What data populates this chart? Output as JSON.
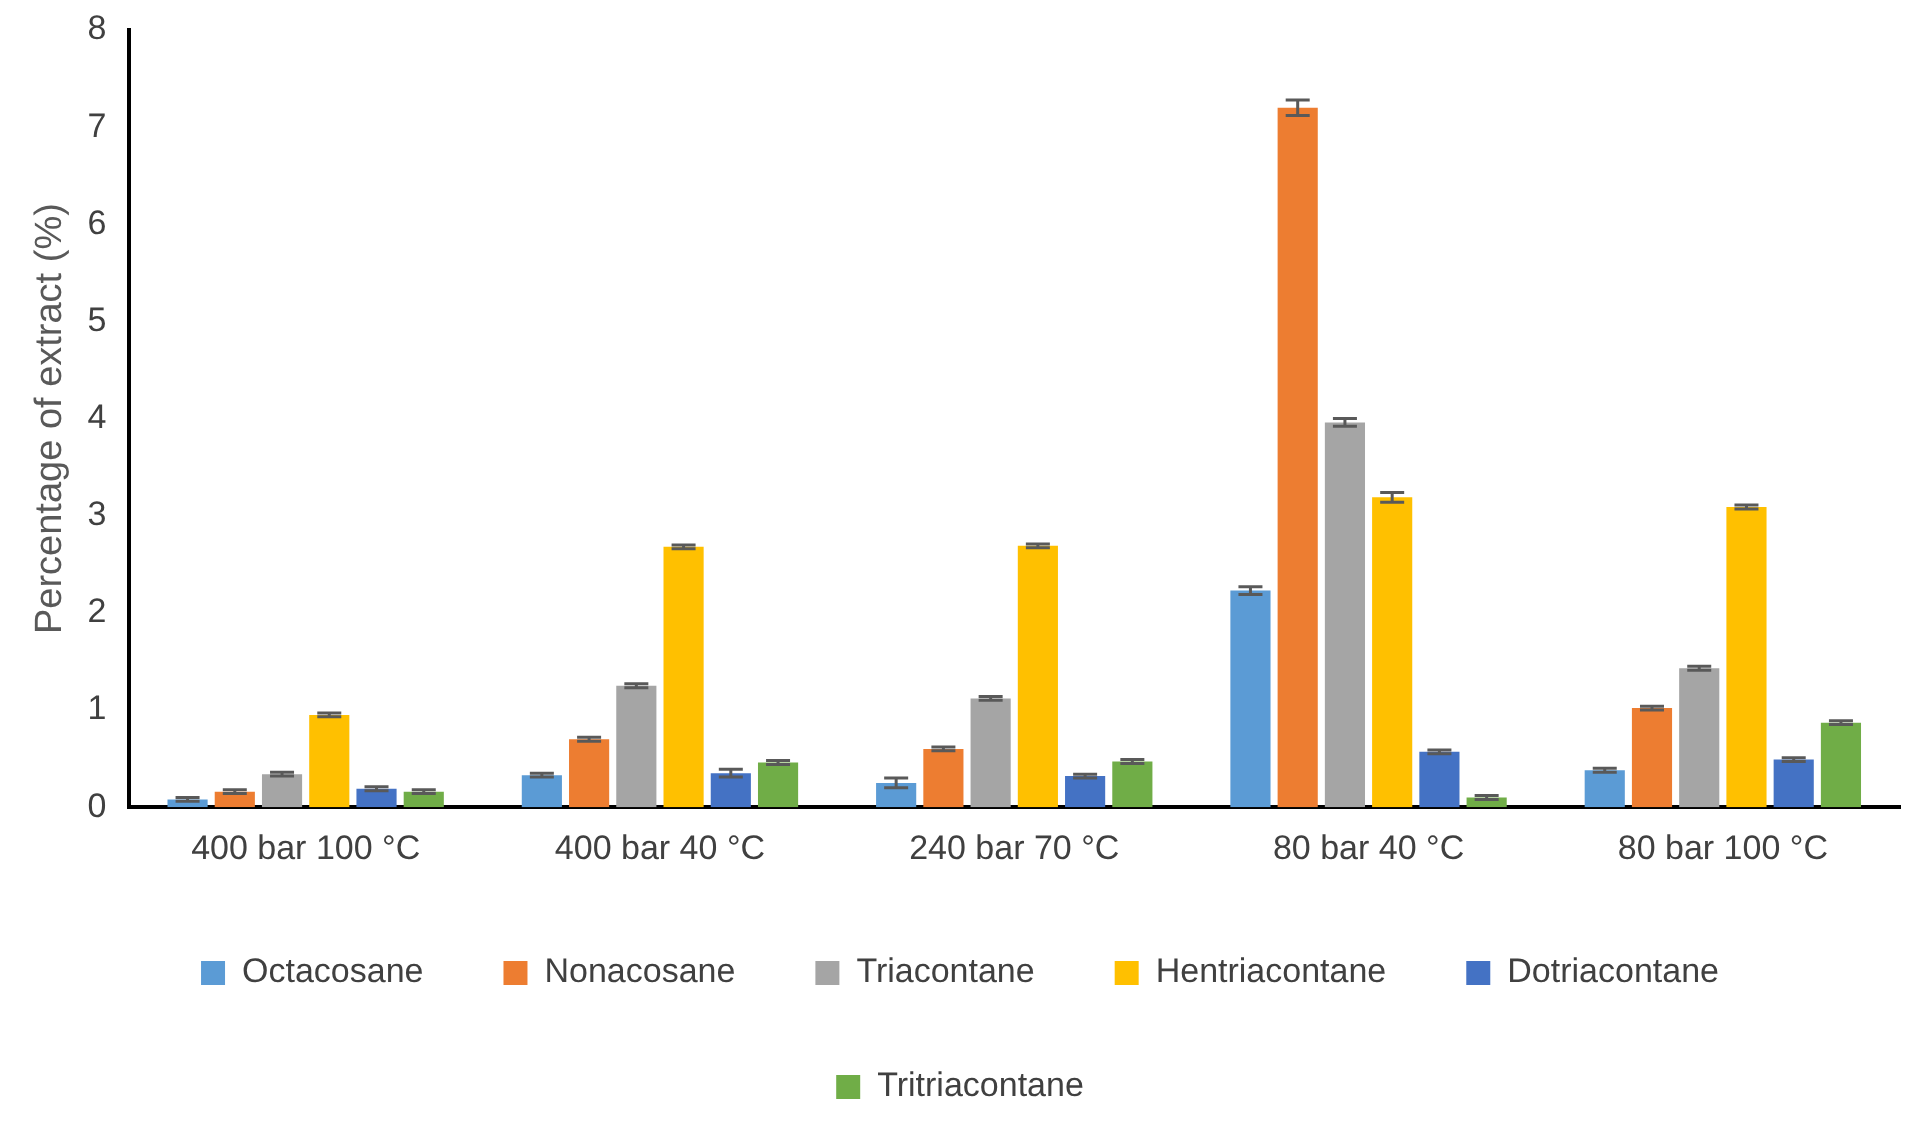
{
  "chart_data": {
    "type": "bar",
    "ylabel": "Percentage of extract (%)",
    "categories": [
      "400 bar 100 °C",
      "400 bar 40 °C",
      "240 bar 70 °C",
      "80 bar 40 °C",
      "80 bar 100 °C"
    ],
    "series": [
      {
        "name": "Octacosane",
        "color": "#5b9bd5",
        "values": [
          0.08,
          0.33,
          0.25,
          2.23,
          0.38
        ],
        "errors": [
          0.02,
          0.02,
          0.05,
          0.04,
          0.02
        ]
      },
      {
        "name": "Nonacosane",
        "color": "#ed7d31",
        "values": [
          0.16,
          0.7,
          0.6,
          7.2,
          1.02
        ],
        "errors": [
          0.02,
          0.02,
          0.02,
          0.08,
          0.02
        ]
      },
      {
        "name": "Triacontane",
        "color": "#a5a5a5",
        "values": [
          0.34,
          1.25,
          1.12,
          3.96,
          1.43
        ],
        "errors": [
          0.02,
          0.02,
          0.02,
          0.04,
          0.02
        ]
      },
      {
        "name": "Hentriacontane",
        "color": "#ffc000",
        "values": [
          0.95,
          2.68,
          2.69,
          3.19,
          3.09
        ],
        "errors": [
          0.02,
          0.02,
          0.02,
          0.05,
          0.02
        ]
      },
      {
        "name": "Dotriacontane",
        "color": "#4472c4",
        "values": [
          0.19,
          0.35,
          0.32,
          0.57,
          0.49
        ],
        "errors": [
          0.02,
          0.04,
          0.02,
          0.02,
          0.02
        ]
      },
      {
        "name": "Tritriacontane",
        "color": "#70ad47",
        "values": [
          0.16,
          0.46,
          0.47,
          0.1,
          0.87
        ],
        "errors": [
          0.02,
          0.02,
          0.02,
          0.02,
          0.02
        ]
      }
    ],
    "ylim": [
      0,
      8
    ],
    "yticks": [
      0,
      1,
      2,
      3,
      4,
      5,
      6,
      7,
      8
    ],
    "grid": false,
    "legend": "bottom"
  }
}
